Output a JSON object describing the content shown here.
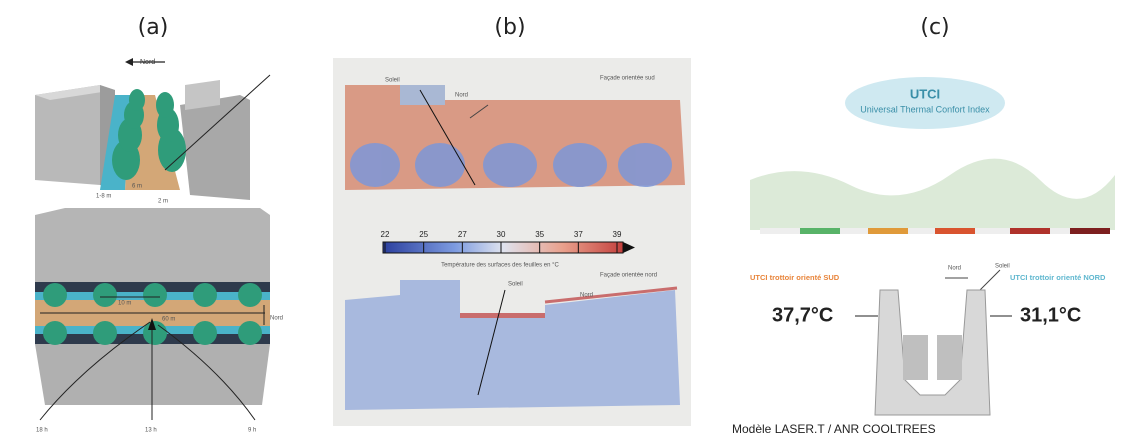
{
  "panel_a": {
    "label": "(a)",
    "north": "Nord",
    "street_dims": [
      "1-8 m",
      "6 m",
      "2 m"
    ],
    "plan_dims": [
      "10 m",
      "60 m"
    ],
    "plan_north": "Nord",
    "hours": [
      "18 h",
      "13 h",
      "9 h"
    ]
  },
  "panel_b": {
    "label": "(b)",
    "top": {
      "sun": "Soleil",
      "north": "Nord",
      "facade": "Façade orientée sud"
    },
    "colorbar": {
      "ticks": [
        "22",
        "25",
        "27",
        "30",
        "35",
        "37",
        "39"
      ],
      "caption": "Température des surfaces des feuilles en °C"
    },
    "bottom": {
      "facade": "Façade orientée nord",
      "sun": "Soleil",
      "north": "Nord"
    }
  },
  "panel_c": {
    "label": "(c)",
    "title": "UTCI",
    "subtitle": "Universal Thermal Confort Index",
    "south_caption": "UTCI trottoir orienté SUD",
    "north": "Nord",
    "sun": "Soleil",
    "north_caption": "UTCI trottoir orienté NORD",
    "south_value": "37,7°C",
    "north_value": "31,1°C"
  },
  "credit": "Modèle LASER.T  / ANR COOLTREES"
}
